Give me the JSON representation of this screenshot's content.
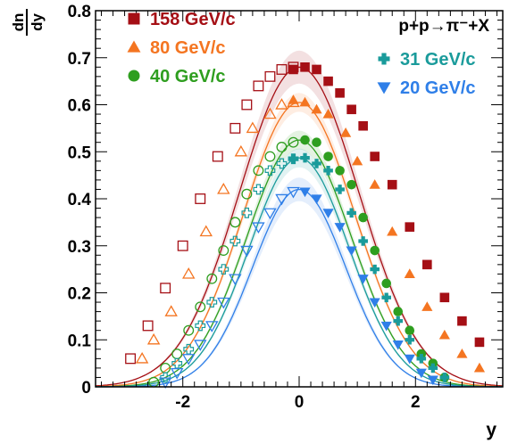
{
  "chart_data": {
    "type": "scatter",
    "title": "",
    "xlabel": "y",
    "ylabel_num": "dn",
    "ylabel_den": "dy",
    "xlim": [
      -3.5,
      3.5
    ],
    "ylim": [
      0,
      0.8
    ],
    "x_ticks": [
      -2,
      0,
      2
    ],
    "x_tick_labels": [
      "-2",
      "0",
      "2"
    ],
    "y_ticks": [
      0,
      0.1,
      0.2,
      0.3,
      0.4,
      0.5,
      0.6,
      0.7,
      0.8
    ],
    "y_tick_labels": [
      "0",
      "0.1",
      "0.2",
      "0.3",
      "0.4",
      "0.5",
      "0.6",
      "0.7",
      "0.8"
    ],
    "reaction_label": "p+p→π⁻+X",
    "grid": false,
    "series": [
      {
        "name": "158 GeV/c",
        "color": "#a50f15",
        "marker": "square",
        "peak": 0.68,
        "sigma": 1.03,
        "band": 0.035,
        "open_points": [
          [
            -2.9,
            0.06
          ],
          [
            -2.6,
            0.13
          ],
          [
            -2.3,
            0.21
          ],
          [
            -2.0,
            0.3
          ],
          [
            -1.7,
            0.4
          ],
          [
            -1.4,
            0.49
          ],
          [
            -1.1,
            0.55
          ],
          [
            -0.9,
            0.6
          ],
          [
            -0.7,
            0.64
          ],
          [
            -0.5,
            0.66
          ],
          [
            -0.3,
            0.675
          ],
          [
            -0.1,
            0.68
          ]
        ],
        "filled_points": [
          [
            -0.1,
            0.675
          ],
          [
            0.1,
            0.68
          ],
          [
            0.3,
            0.675
          ],
          [
            0.5,
            0.65
          ],
          [
            0.7,
            0.625
          ],
          [
            0.9,
            0.59
          ],
          [
            1.1,
            0.555
          ],
          [
            1.3,
            0.49
          ],
          [
            1.6,
            0.43
          ],
          [
            1.9,
            0.34
          ],
          [
            2.2,
            0.26
          ],
          [
            2.5,
            0.19
          ],
          [
            2.8,
            0.14
          ],
          [
            3.1,
            0.095
          ]
        ]
      },
      {
        "name": "80 GeV/c",
        "color": "#f47521",
        "marker": "triangle-up",
        "peak": 0.605,
        "sigma": 0.96,
        "band": 0.02,
        "open_points": [
          [
            -2.7,
            0.06
          ],
          [
            -2.5,
            0.1
          ],
          [
            -2.2,
            0.16
          ],
          [
            -1.9,
            0.24
          ],
          [
            -1.6,
            0.33
          ],
          [
            -1.3,
            0.42
          ],
          [
            -1.0,
            0.5
          ],
          [
            -0.8,
            0.55
          ],
          [
            -0.5,
            0.58
          ],
          [
            -0.3,
            0.6
          ],
          [
            -0.1,
            0.605
          ]
        ],
        "filled_points": [
          [
            -0.1,
            0.61
          ],
          [
            0.1,
            0.605
          ],
          [
            0.3,
            0.59
          ],
          [
            0.5,
            0.58
          ],
          [
            0.8,
            0.54
          ],
          [
            1.0,
            0.48
          ],
          [
            1.3,
            0.43
          ],
          [
            1.6,
            0.33
          ],
          [
            1.9,
            0.24
          ],
          [
            2.2,
            0.17
          ],
          [
            2.5,
            0.11
          ],
          [
            2.8,
            0.07
          ],
          [
            3.1,
            0.04
          ]
        ]
      },
      {
        "name": "40 GeV/c",
        "color": "#2e9e1f",
        "marker": "circle",
        "peak": 0.525,
        "sigma": 0.9,
        "band": 0.02,
        "open_points": [
          [
            -2.5,
            0.01
          ],
          [
            -2.3,
            0.04
          ],
          [
            -2.1,
            0.07
          ],
          [
            -1.9,
            0.12
          ],
          [
            -1.7,
            0.17
          ],
          [
            -1.5,
            0.23
          ],
          [
            -1.3,
            0.29
          ],
          [
            -1.1,
            0.35
          ],
          [
            -0.9,
            0.41
          ],
          [
            -0.7,
            0.46
          ],
          [
            -0.5,
            0.49
          ],
          [
            -0.3,
            0.51
          ],
          [
            -0.1,
            0.52
          ]
        ],
        "filled_points": [
          [
            0.1,
            0.525
          ],
          [
            0.3,
            0.52
          ],
          [
            0.5,
            0.49
          ],
          [
            0.7,
            0.46
          ],
          [
            0.9,
            0.43
          ],
          [
            1.1,
            0.36
          ],
          [
            1.3,
            0.29
          ],
          [
            1.5,
            0.22
          ],
          [
            1.7,
            0.16
          ],
          [
            1.9,
            0.12
          ],
          [
            2.1,
            0.07
          ],
          [
            2.3,
            0.05
          ],
          [
            2.5,
            0.02
          ]
        ]
      },
      {
        "name": "31 GeV/c",
        "color": "#1a9b9b",
        "marker": "cross",
        "peak": 0.487,
        "sigma": 0.86,
        "band": 0.02,
        "open_points": [
          [
            -2.3,
            0.02
          ],
          [
            -2.1,
            0.05
          ],
          [
            -1.9,
            0.08
          ],
          [
            -1.7,
            0.13
          ],
          [
            -1.5,
            0.18
          ],
          [
            -1.3,
            0.25
          ],
          [
            -1.1,
            0.31
          ],
          [
            -0.9,
            0.37
          ],
          [
            -0.7,
            0.42
          ],
          [
            -0.5,
            0.46
          ],
          [
            -0.3,
            0.475
          ],
          [
            -0.1,
            0.485
          ]
        ],
        "filled_points": [
          [
            -0.1,
            0.485
          ],
          [
            0.1,
            0.487
          ],
          [
            0.3,
            0.475
          ],
          [
            0.5,
            0.46
          ],
          [
            0.7,
            0.42
          ],
          [
            0.9,
            0.37
          ],
          [
            1.1,
            0.31
          ],
          [
            1.3,
            0.25
          ],
          [
            1.5,
            0.19
          ],
          [
            1.7,
            0.14
          ],
          [
            1.9,
            0.1
          ],
          [
            2.1,
            0.06
          ],
          [
            2.3,
            0.04
          ],
          [
            2.5,
            0.02
          ]
        ]
      },
      {
        "name": "20 GeV/c",
        "color": "#2f7fe8",
        "marker": "triangle-down",
        "peak": 0.42,
        "sigma": 0.8,
        "band": 0.025,
        "open_points": [
          [
            -2.3,
            0.01
          ],
          [
            -2.1,
            0.03
          ],
          [
            -1.9,
            0.06
          ],
          [
            -1.7,
            0.09
          ],
          [
            -1.5,
            0.13
          ],
          [
            -1.3,
            0.18
          ],
          [
            -1.1,
            0.23
          ],
          [
            -0.9,
            0.29
          ],
          [
            -0.7,
            0.34
          ],
          [
            -0.5,
            0.37
          ],
          [
            -0.3,
            0.4
          ],
          [
            -0.1,
            0.415
          ]
        ],
        "filled_points": [
          [
            0.1,
            0.415
          ],
          [
            0.3,
            0.4
          ],
          [
            0.5,
            0.37
          ],
          [
            0.7,
            0.34
          ],
          [
            0.9,
            0.29
          ],
          [
            1.1,
            0.23
          ],
          [
            1.3,
            0.18
          ],
          [
            1.5,
            0.13
          ],
          [
            1.7,
            0.09
          ],
          [
            1.9,
            0.06
          ],
          [
            2.1,
            0.03
          ],
          [
            2.3,
            0.015
          ]
        ]
      }
    ]
  }
}
